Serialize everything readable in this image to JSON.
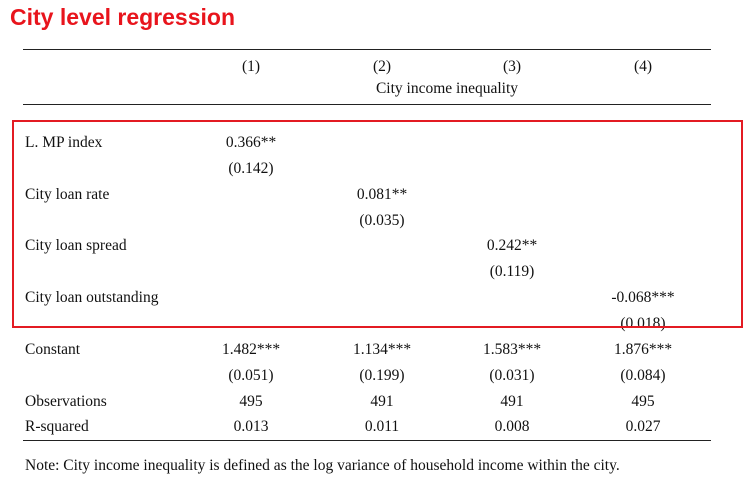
{
  "title": "City level regression",
  "columns": [
    "(1)",
    "(2)",
    "(3)",
    "(4)"
  ],
  "dependent_variable": "City income inequality",
  "rows": {
    "mp_index": {
      "label": "L. MP index",
      "coef": "0.366**",
      "se": "(0.142)"
    },
    "loan_rate": {
      "label": "City loan rate",
      "coef": "0.081**",
      "se": "(0.035)"
    },
    "loan_spread": {
      "label": "City loan spread",
      "coef": "0.242**",
      "se": "(0.119)"
    },
    "loan_outstanding": {
      "label": "City loan outstanding",
      "coef": "-0.068***",
      "se": "(0.018)"
    }
  },
  "constant": {
    "label": "Constant",
    "coefs": [
      "1.482***",
      "1.134***",
      "1.583***",
      "1.876***"
    ],
    "ses": [
      "(0.051)",
      "(0.199)",
      "(0.031)",
      "(0.084)"
    ]
  },
  "observations": {
    "label": "Observations",
    "values": [
      "495",
      "491",
      "491",
      "495"
    ]
  },
  "r_squared": {
    "label": "R-squared",
    "values": [
      "0.013",
      "0.011",
      "0.008",
      "0.027"
    ]
  },
  "note": "Note: City income inequality is defined as the log variance of household income within the city.",
  "highlight_color": "#e31b23"
}
